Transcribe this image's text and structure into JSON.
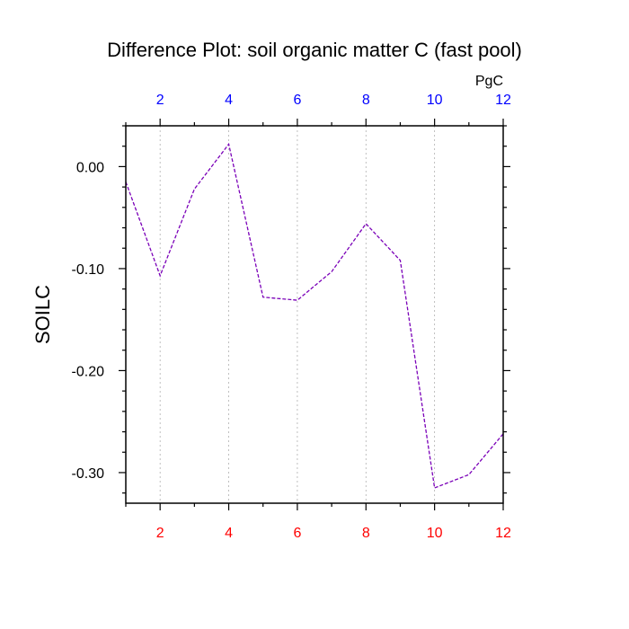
{
  "chart_data": {
    "type": "line",
    "title": "Difference Plot: soil organic matter C (fast pool)",
    "ylabel": "SOILC",
    "units_label": "PgC",
    "x": [
      1,
      2,
      3,
      4,
      5,
      6,
      7,
      8,
      9,
      10,
      11,
      12
    ],
    "series": [
      {
        "values": [
          -0.015,
          -0.107,
          -0.022,
          0.022,
          -0.128,
          -0.131,
          -0.103,
          -0.056,
          -0.092,
          -0.315,
          -0.302,
          -0.262
        ]
      }
    ],
    "xlim": [
      1,
      12
    ],
    "ylim": [
      -0.33,
      0.04
    ],
    "x_ticks": [
      2,
      4,
      6,
      8,
      10,
      12
    ],
    "y_ticks": [
      0.0,
      -0.1,
      -0.2,
      -0.3
    ],
    "y_tick_labels": [
      "0.00",
      "-0.10",
      "-0.20",
      "-0.30"
    ],
    "grid": "vertical dashed at x ticks",
    "colors": {
      "line": "#7a00b8",
      "bottom_tick_labels": "#ff0000",
      "top_tick_labels": "#0000ff",
      "grid": "#b0b0b0"
    }
  }
}
